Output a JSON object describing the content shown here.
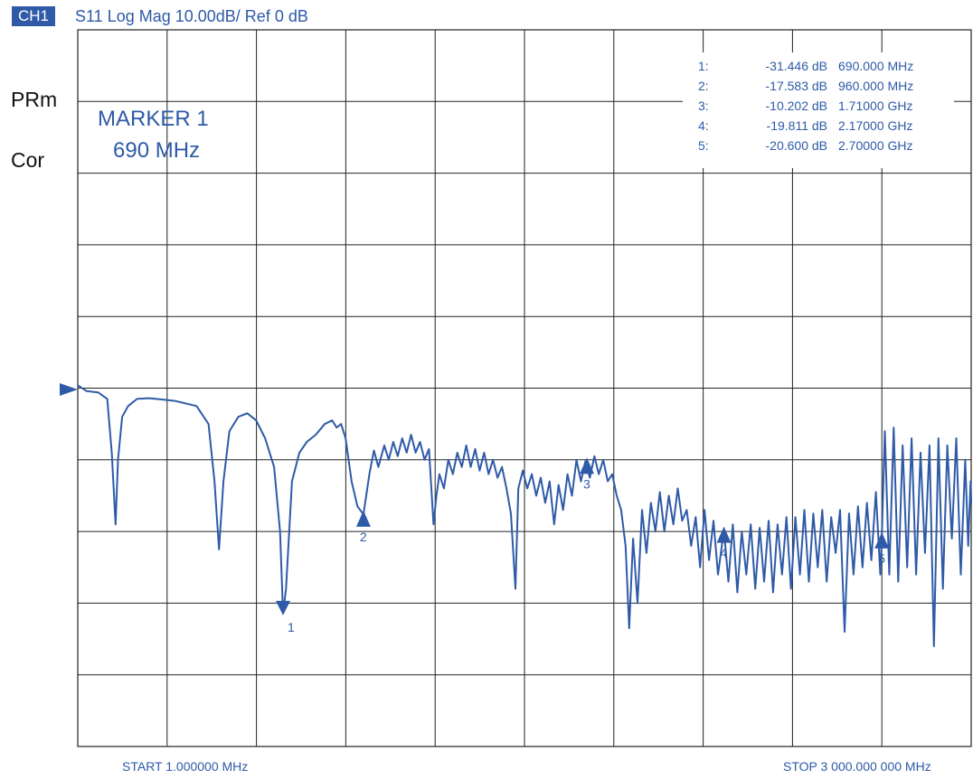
{
  "header": {
    "channel_badge": "CH1",
    "title": "S11 Log Mag 10.00dB/ Ref 0 dB"
  },
  "side_labels": {
    "prm": "PRm",
    "cor": "Cor"
  },
  "footer": {
    "start": "START 1.000000 MHz",
    "stop": "STOP 3 000.000 000 MHz"
  },
  "colors": {
    "trace": "#2e5aa8",
    "grid": "#222222",
    "background": "#ffffff"
  },
  "chart_data": {
    "type": "line",
    "title": "S11 Log Mag 10.00dB/ Ref 0 dB",
    "x_unit": "MHz",
    "y_unit": "dB",
    "xlim": [
      1,
      3000
    ],
    "ylim": [
      -50,
      50
    ],
    "grid": true,
    "reference_level_db": 0,
    "scale_db_per_div": 10,
    "active_marker": {
      "line1": "MARKER 1",
      "line2": "690 MHz"
    },
    "markers": [
      {
        "id": "1",
        "num": "1:",
        "value": "-31.446 dB",
        "freq": "690.000 MHz",
        "x": 690,
        "y": -31.446
      },
      {
        "id": "2",
        "num": "2:",
        "value": "-17.583 dB",
        "freq": "960.000 MHz",
        "x": 960,
        "y": -17.583
      },
      {
        "id": "3",
        "num": "3:",
        "value": "-10.202 dB",
        "freq": "1.71000 GHz",
        "x": 1710,
        "y": -10.202
      },
      {
        "id": "4",
        "num": "4:",
        "value": "-19.811 dB",
        "freq": "2.17000 GHz",
        "x": 2170,
        "y": -19.811
      },
      {
        "id": "5",
        "num": "5:",
        "value": "-20.600 dB",
        "freq": "2.70000 GHz",
        "x": 2700,
        "y": -20.6
      }
    ],
    "series": [
      {
        "points": [
          [
            1,
            0.4
          ],
          [
            12,
            0.1
          ],
          [
            30,
            -0.4
          ],
          [
            70,
            -0.6
          ],
          [
            100,
            -1.5
          ],
          [
            115,
            -9
          ],
          [
            128,
            -19
          ],
          [
            136,
            -10
          ],
          [
            150,
            -4
          ],
          [
            170,
            -2.5
          ],
          [
            200,
            -1.5
          ],
          [
            240,
            -1.4
          ],
          [
            290,
            -1.6
          ],
          [
            330,
            -1.8
          ],
          [
            400,
            -2.5
          ],
          [
            440,
            -5
          ],
          [
            460,
            -13
          ],
          [
            475,
            -22.5
          ],
          [
            490,
            -13
          ],
          [
            510,
            -6
          ],
          [
            540,
            -4
          ],
          [
            570,
            -3.5
          ],
          [
            600,
            -4.5
          ],
          [
            630,
            -7
          ],
          [
            660,
            -11
          ],
          [
            680,
            -20
          ],
          [
            690,
            -31.4
          ],
          [
            700,
            -28
          ],
          [
            720,
            -13
          ],
          [
            745,
            -9
          ],
          [
            770,
            -7.5
          ],
          [
            800,
            -6.5
          ],
          [
            830,
            -5
          ],
          [
            855,
            -4.5
          ],
          [
            870,
            -5.5
          ],
          [
            885,
            -5
          ],
          [
            900,
            -7
          ],
          [
            920,
            -13
          ],
          [
            940,
            -16.5
          ],
          [
            960,
            -17.6
          ],
          [
            980,
            -12
          ],
          [
            995,
            -8.7
          ],
          [
            1010,
            -11
          ],
          [
            1030,
            -8
          ],
          [
            1045,
            -10
          ],
          [
            1060,
            -7.5
          ],
          [
            1075,
            -9.5
          ],
          [
            1090,
            -7
          ],
          [
            1105,
            -9
          ],
          [
            1120,
            -6.5
          ],
          [
            1135,
            -9
          ],
          [
            1150,
            -7.5
          ],
          [
            1165,
            -10
          ],
          [
            1180,
            -8.5
          ],
          [
            1195,
            -19
          ],
          [
            1205,
            -15
          ],
          [
            1215,
            -12
          ],
          [
            1230,
            -14
          ],
          [
            1245,
            -10
          ],
          [
            1260,
            -12
          ],
          [
            1275,
            -9
          ],
          [
            1290,
            -11
          ],
          [
            1305,
            -8
          ],
          [
            1320,
            -11
          ],
          [
            1335,
            -8.5
          ],
          [
            1350,
            -11.5
          ],
          [
            1365,
            -9
          ],
          [
            1380,
            -12
          ],
          [
            1395,
            -10
          ],
          [
            1410,
            -12.5
          ],
          [
            1425,
            -11
          ],
          [
            1440,
            -14
          ],
          [
            1455,
            -17.5
          ],
          [
            1470,
            -28
          ],
          [
            1480,
            -14
          ],
          [
            1495,
            -11.5
          ],
          [
            1510,
            -14
          ],
          [
            1525,
            -12
          ],
          [
            1540,
            -15
          ],
          [
            1555,
            -12.5
          ],
          [
            1570,
            -16
          ],
          [
            1585,
            -13
          ],
          [
            1600,
            -19
          ],
          [
            1615,
            -13.5
          ],
          [
            1630,
            -17
          ],
          [
            1645,
            -12
          ],
          [
            1660,
            -15
          ],
          [
            1675,
            -10
          ],
          [
            1690,
            -13
          ],
          [
            1705,
            -10.2
          ],
          [
            1720,
            -12.5
          ],
          [
            1735,
            -9.5
          ],
          [
            1750,
            -12
          ],
          [
            1765,
            -10
          ],
          [
            1780,
            -13
          ],
          [
            1795,
            -12
          ],
          [
            1810,
            -15
          ],
          [
            1825,
            -17
          ],
          [
            1840,
            -22
          ],
          [
            1852,
            -33.5
          ],
          [
            1865,
            -21
          ],
          [
            1880,
            -30
          ],
          [
            1895,
            -17
          ],
          [
            1910,
            -23
          ],
          [
            1925,
            -16
          ],
          [
            1940,
            -20
          ],
          [
            1955,
            -14.5
          ],
          [
            1970,
            -20
          ],
          [
            1985,
            -15
          ],
          [
            2000,
            -19
          ],
          [
            2015,
            -14
          ],
          [
            2030,
            -18.5
          ],
          [
            2045,
            -17
          ],
          [
            2060,
            -22
          ],
          [
            2075,
            -18
          ],
          [
            2090,
            -25
          ],
          [
            2105,
            -17
          ],
          [
            2120,
            -24
          ],
          [
            2135,
            -18.5
          ],
          [
            2150,
            -26
          ],
          [
            2170,
            -19.8
          ],
          [
            2185,
            -27
          ],
          [
            2200,
            -19
          ],
          [
            2215,
            -28.5
          ],
          [
            2230,
            -20
          ],
          [
            2245,
            -26
          ],
          [
            2260,
            -19
          ],
          [
            2275,
            -28
          ],
          [
            2290,
            -19.5
          ],
          [
            2305,
            -27
          ],
          [
            2320,
            -18.5
          ],
          [
            2335,
            -28.5
          ],
          [
            2350,
            -19
          ],
          [
            2365,
            -26
          ],
          [
            2380,
            -18
          ],
          [
            2395,
            -28
          ],
          [
            2410,
            -18
          ],
          [
            2425,
            -26
          ],
          [
            2440,
            -17
          ],
          [
            2455,
            -27
          ],
          [
            2470,
            -17.5
          ],
          [
            2485,
            -25
          ],
          [
            2500,
            -17
          ],
          [
            2515,
            -27
          ],
          [
            2530,
            -18
          ],
          [
            2545,
            -23
          ],
          [
            2560,
            -17
          ],
          [
            2575,
            -34
          ],
          [
            2590,
            -17.5
          ],
          [
            2605,
            -26
          ],
          [
            2620,
            -16.5
          ],
          [
            2635,
            -25
          ],
          [
            2650,
            -16
          ],
          [
            2665,
            -24
          ],
          [
            2680,
            -14.5
          ],
          [
            2695,
            -26
          ],
          [
            2700,
            -20.6
          ],
          [
            2710,
            -6
          ],
          [
            2725,
            -26
          ],
          [
            2740,
            -5.5
          ],
          [
            2755,
            -27
          ],
          [
            2770,
            -8
          ],
          [
            2785,
            -25
          ],
          [
            2800,
            -7
          ],
          [
            2815,
            -26
          ],
          [
            2830,
            -9
          ],
          [
            2845,
            -23
          ],
          [
            2860,
            -8
          ],
          [
            2875,
            -36
          ],
          [
            2890,
            -7
          ],
          [
            2905,
            -28
          ],
          [
            2920,
            -8
          ],
          [
            2935,
            -21
          ],
          [
            2950,
            -7
          ],
          [
            2965,
            -26
          ],
          [
            2980,
            -10
          ],
          [
            2990,
            -22
          ],
          [
            2998,
            -13
          ],
          [
            3000,
            -16
          ]
        ]
      }
    ]
  }
}
